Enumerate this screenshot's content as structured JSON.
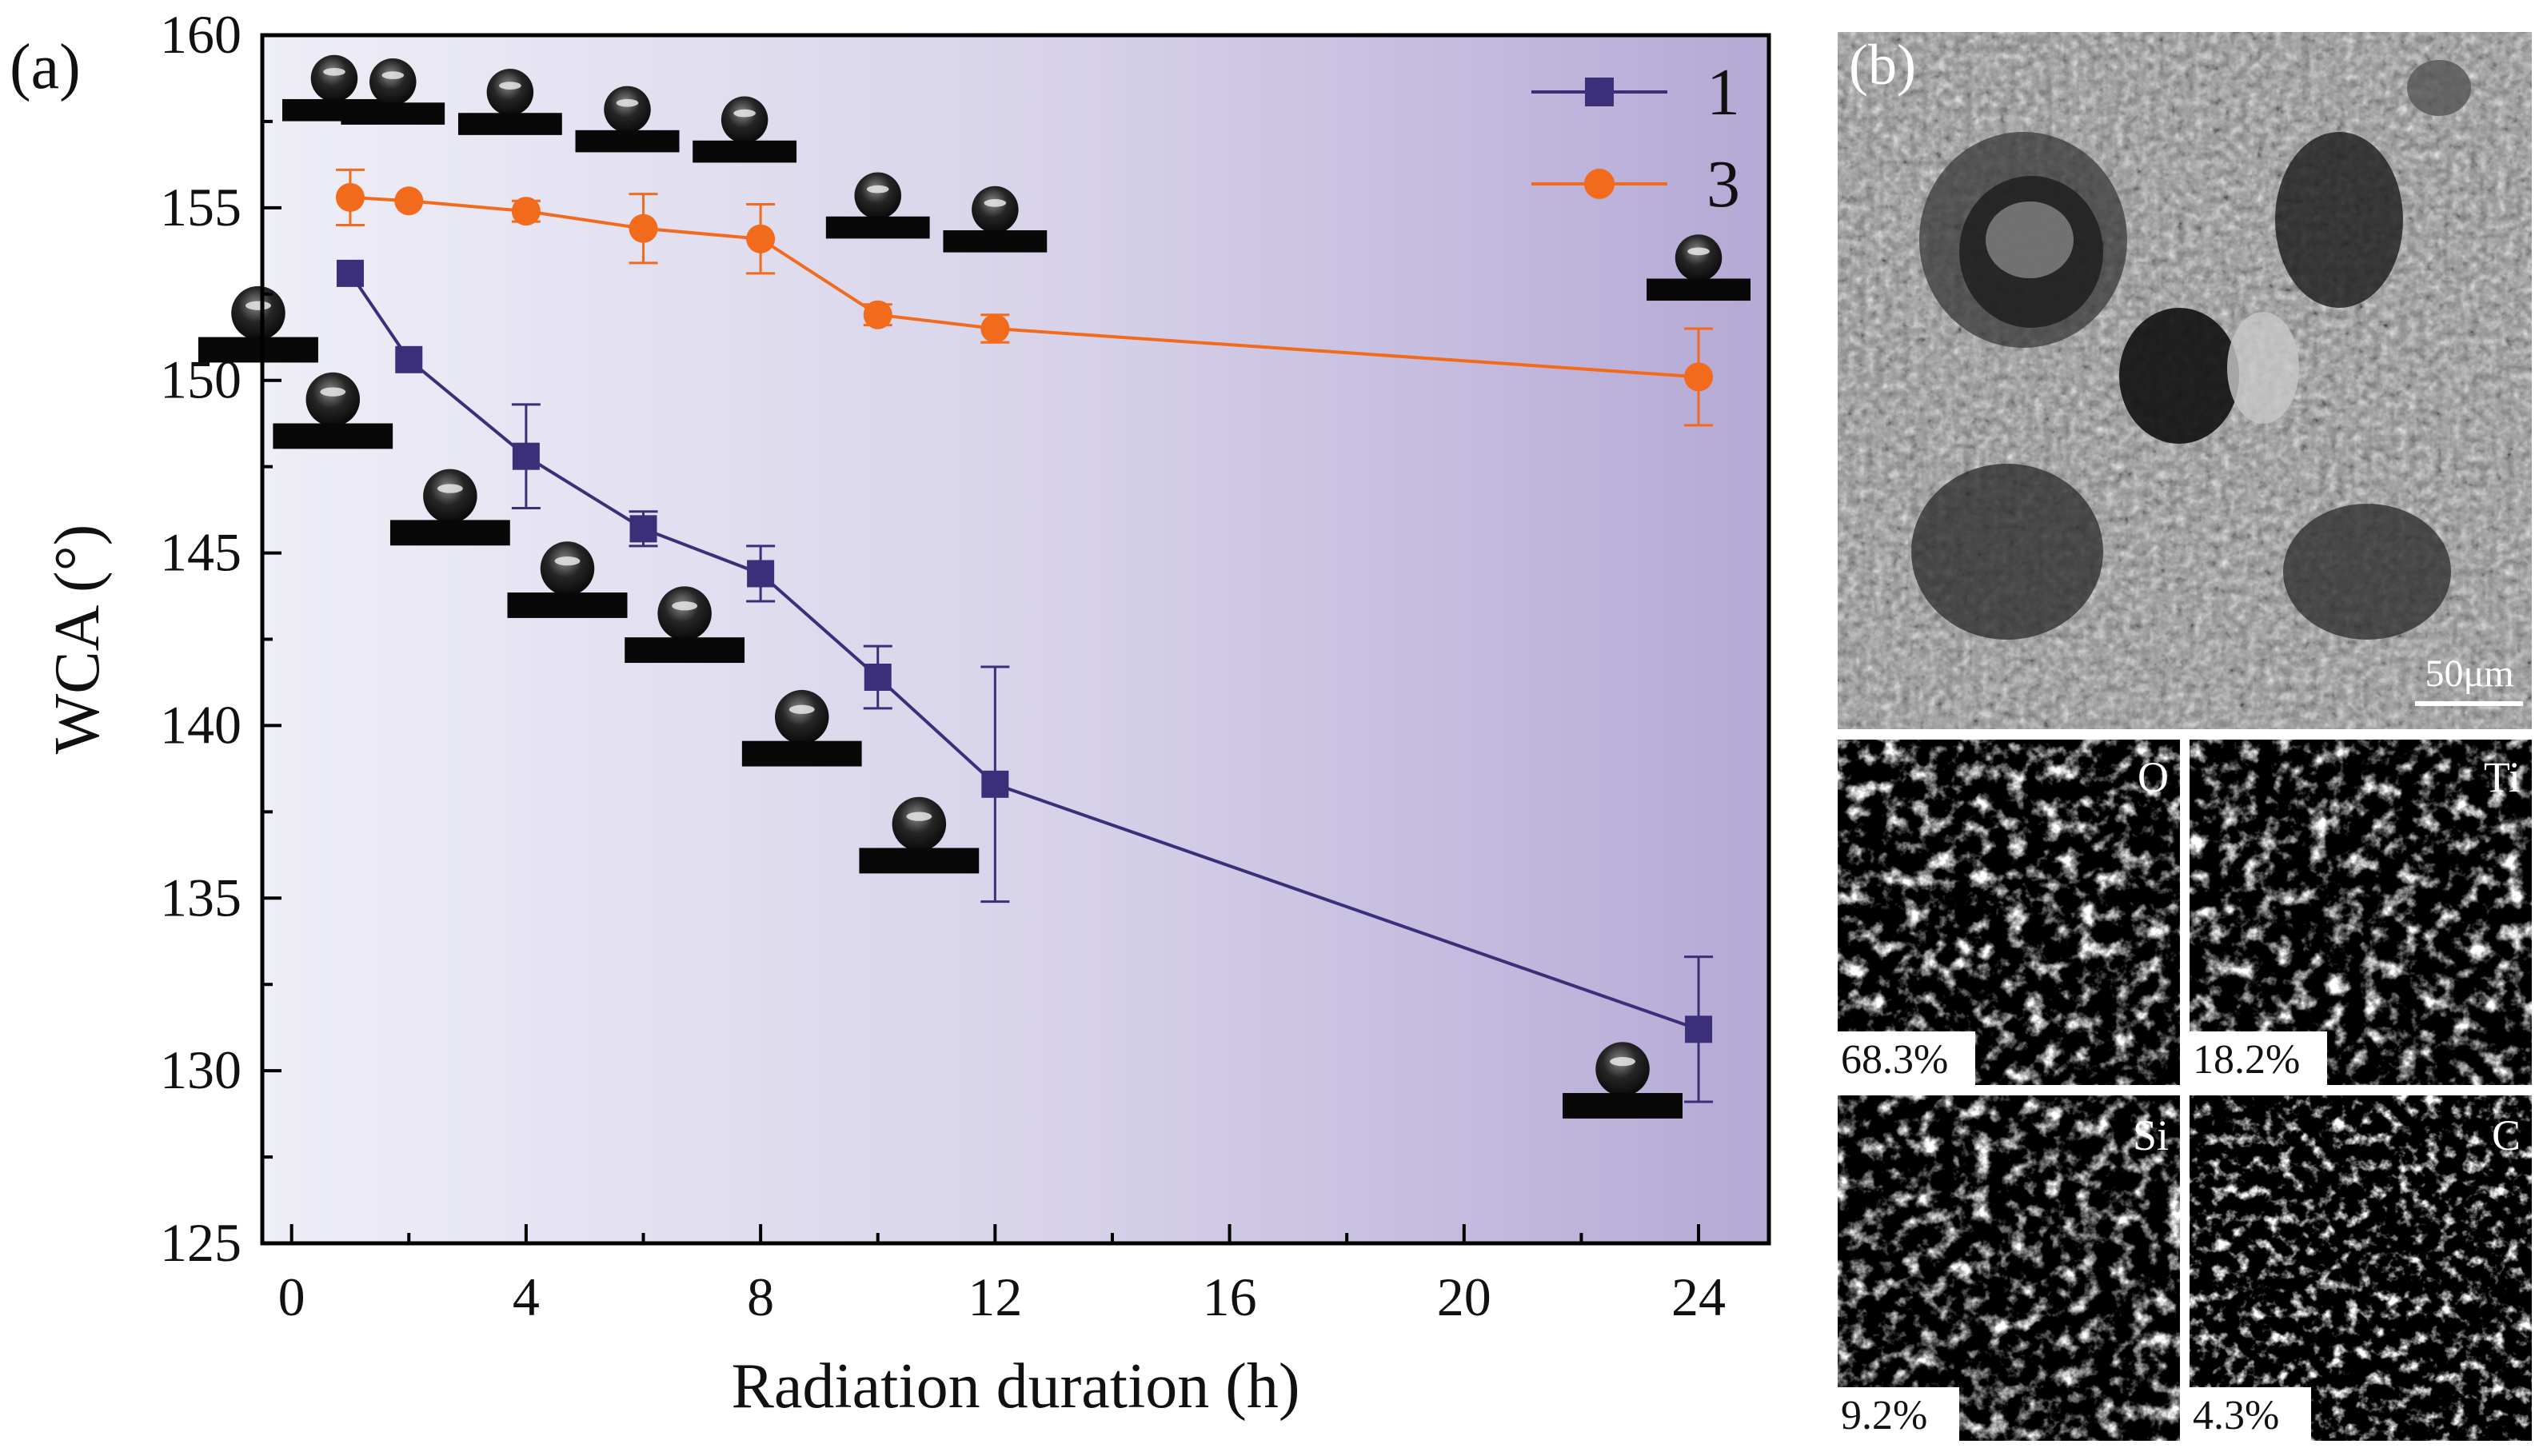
{
  "panel_a": {
    "label": "(a)",
    "chart_data": {
      "type": "line",
      "title": "",
      "xlabel": "Radiation duration (h)",
      "ylabel": "WCA (°)",
      "xlim": [
        -0.5,
        25.2
      ],
      "ylim": [
        125,
        160
      ],
      "xticks": [
        0,
        4,
        8,
        12,
        16,
        20,
        24
      ],
      "yticks": [
        125,
        130,
        135,
        140,
        145,
        150,
        155,
        160
      ],
      "legend_position": "top-right",
      "series": [
        {
          "name": "1",
          "color": "#3b2f7a",
          "marker": "square",
          "x": [
            1,
            2,
            4,
            6,
            8,
            10,
            12,
            24
          ],
          "y": [
            153.1,
            150.6,
            147.8,
            145.7,
            144.4,
            141.4,
            138.3,
            131.2
          ],
          "err": [
            0,
            0,
            1.5,
            0.5,
            0.8,
            0.9,
            3.4,
            2.1
          ]
        },
        {
          "name": "3",
          "color": "#f26a1b",
          "marker": "circle",
          "x": [
            1,
            2,
            4,
            6,
            8,
            10,
            12,
            24
          ],
          "y": [
            155.3,
            155.2,
            154.9,
            154.4,
            154.1,
            151.9,
            151.5,
            150.1
          ],
          "err": [
            0.8,
            0,
            0.3,
            1.0,
            1.0,
            0.3,
            0.4,
            1.4
          ]
        }
      ]
    },
    "droplet_icon": "water-droplet-on-substrate"
  },
  "panel_b": {
    "label": "(b)",
    "scale_bar": "50μm",
    "maps": [
      {
        "element": "O",
        "percent": "68.3%",
        "color": "#33cc33"
      },
      {
        "element": "Ti",
        "percent": "18.2%",
        "color": "#ff2020"
      },
      {
        "element": "Si",
        "percent": "9.2%",
        "color": "#ff2020"
      },
      {
        "element": "C",
        "percent": "4.3%",
        "color": "#b8dc1e"
      }
    ]
  }
}
